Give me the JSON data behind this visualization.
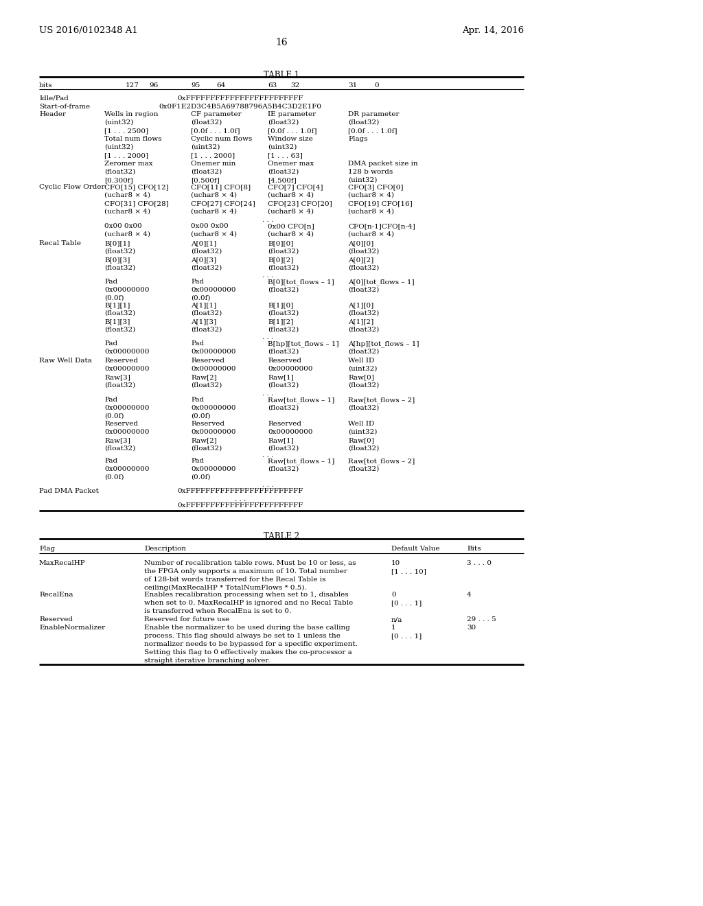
{
  "header_left": "US 2016/0102348 A1",
  "header_right": "Apr. 14, 2016",
  "page_number": "16",
  "table1_title": "TABLE 1",
  "table2_title": "TABLE 2",
  "bg_color": "#ffffff",
  "text_color": "#000000"
}
